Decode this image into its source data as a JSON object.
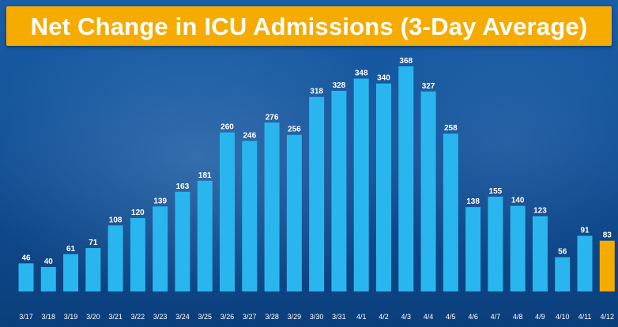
{
  "title": "Net Change in ICU Admissions (3-Day Average)",
  "colors": {
    "bar": "#29b6ee",
    "highlight": "#f6ab00",
    "banner": "#f6ab00",
    "text": "#ffffff"
  },
  "chart_data": {
    "type": "bar",
    "title": "Net Change in ICU Admissions (3-Day Average)",
    "categories": [
      "3/17",
      "3/18",
      "3/19",
      "3/20",
      "3/21",
      "3/22",
      "3/23",
      "3/24",
      "3/25",
      "3/26",
      "3/27",
      "3/28",
      "3/29",
      "3/30",
      "3/31",
      "4/1",
      "4/2",
      "4/3",
      "4/4",
      "4/5",
      "4/6",
      "4/7",
      "4/8",
      "4/9",
      "4/10",
      "4/11",
      "4/12"
    ],
    "values": [
      46,
      40,
      61,
      71,
      108,
      120,
      139,
      163,
      181,
      260,
      246,
      276,
      256,
      318,
      328,
      348,
      340,
      368,
      327,
      258,
      138,
      155,
      140,
      123,
      56,
      91,
      83
    ],
    "highlight_category": "4/12",
    "xlabel": "",
    "ylabel": "",
    "ylim": [
      0,
      368
    ],
    "grid": false,
    "legend": "none"
  }
}
